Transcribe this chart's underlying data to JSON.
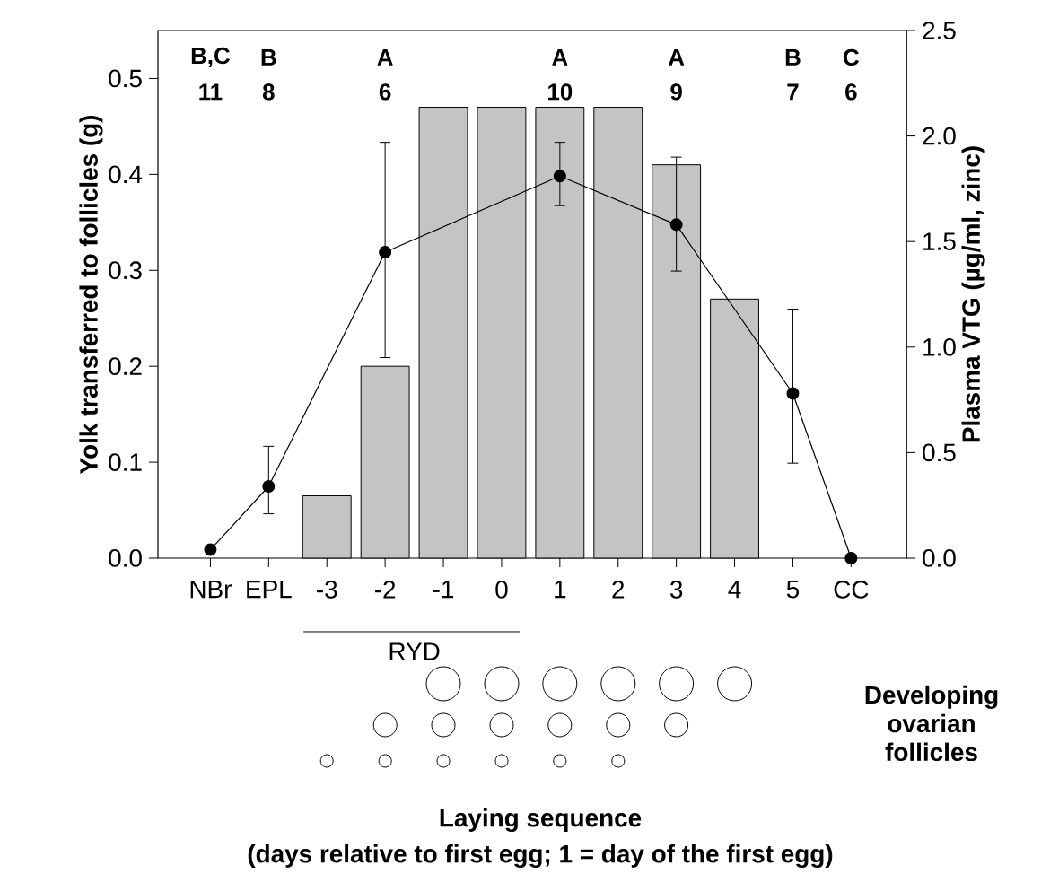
{
  "chart_data": {
    "type": "bar",
    "categories": [
      "NBr",
      "EPL",
      "-3",
      "-2",
      "-1",
      "0",
      "1",
      "2",
      "3",
      "4",
      "5",
      "CC"
    ],
    "series": [
      {
        "color": "#c4c4c4",
        "values": [
          null,
          null,
          0.065,
          0.2,
          0.47,
          0.47,
          0.47,
          0.47,
          0.41,
          0.27,
          null,
          null
        ]
      },
      {
        "type": "line",
        "axis": "y2",
        "color": "#000000",
        "values": [
          0.04,
          0.34,
          null,
          1.45,
          null,
          null,
          1.81,
          null,
          1.58,
          null,
          0.78,
          0.0
        ],
        "errors": [
          null,
          [
            0.21,
            0.53
          ],
          null,
          [
            0.95,
            1.97
          ],
          null,
          null,
          [
            1.67,
            1.97
          ],
          null,
          [
            1.36,
            1.9
          ],
          null,
          [
            0.45,
            1.18
          ],
          null
        ]
      }
    ],
    "marker": "circle",
    "ylim": [
      0,
      0.55
    ],
    "yticks": [
      {
        "value": 0,
        "label": "0.0"
      },
      {
        "value": 0.1,
        "label": "0.1"
      },
      {
        "value": 0.2,
        "label": "0.2"
      },
      {
        "value": 0.3,
        "label": "0.3"
      },
      {
        "value": 0.4,
        "label": "0.4"
      },
      {
        "value": 0.5,
        "label": "0.5"
      }
    ],
    "y2lim": [
      0,
      2.5
    ],
    "y2ticks": [
      {
        "value": 0,
        "label": "0.0"
      },
      {
        "value": 0.5,
        "label": "0.5"
      },
      {
        "value": 1,
        "label": "1.0"
      },
      {
        "value": 1.5,
        "label": "1.5"
      },
      {
        "value": 2,
        "label": "2.0"
      },
      {
        "value": 2.5,
        "label": "2.5"
      }
    ],
    "ylabel": "Yolk transferred to follicles (g)",
    "y2label": "Plasma VTG (µg/ml, zinc)",
    "annotations": [
      "B,C",
      "11",
      "B",
      "8",
      "A",
      "6",
      "A",
      "10",
      "A",
      "9",
      "B",
      "7",
      "C",
      "6",
      "RYD",
      "Developing ovarian follicles",
      "Laying sequence",
      "(days relative to first egg; 1 = day of the first egg)"
    ]
  }
}
